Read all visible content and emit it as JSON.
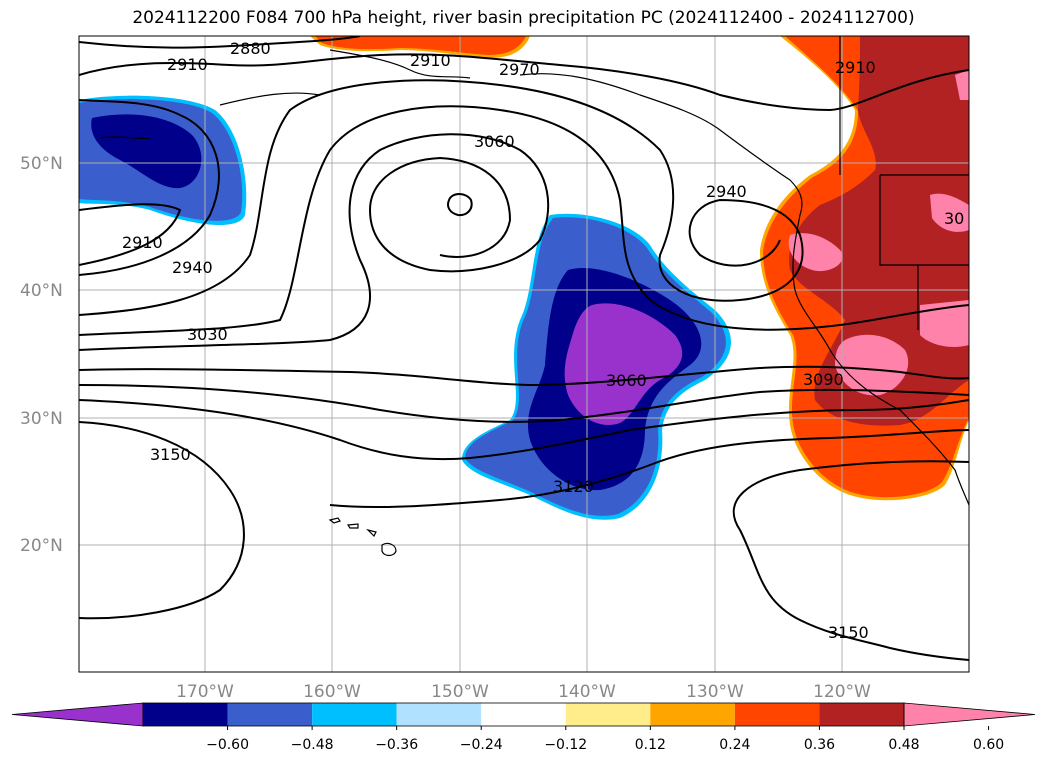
{
  "title": "2024112200 F084 700 hPa height, river basin precipitation PC (2024112400 - 2024112700)",
  "map": {
    "lat_labels": [
      "50°N",
      "40°N",
      "30°N",
      "20°N"
    ],
    "lon_labels": [
      "170°W",
      "160°W",
      "150°W",
      "140°W",
      "130°W",
      "120°W"
    ],
    "contour_labels": [
      "2880",
      "2910",
      "2910",
      "2910",
      "2940",
      "2940",
      "2970",
      "3060",
      "3030",
      "3060",
      "3090",
      "3120",
      "3150",
      "3150",
      "30",
      "2910"
    ]
  },
  "colorbar": {
    "colors": [
      "#9932cc",
      "#00008b",
      "#3a5fcd",
      "#00bfff",
      "#b0e2ff",
      "#ffffff",
      "#ffec8b",
      "#ffa500",
      "#ff4500",
      "#b22222",
      "#ff82ab"
    ],
    "tick_labels": [
      "−0.60",
      "−0.48",
      "−0.36",
      "−0.24",
      "−0.12",
      "0.12",
      "0.24",
      "0.36",
      "0.48",
      "0.60"
    ]
  }
}
